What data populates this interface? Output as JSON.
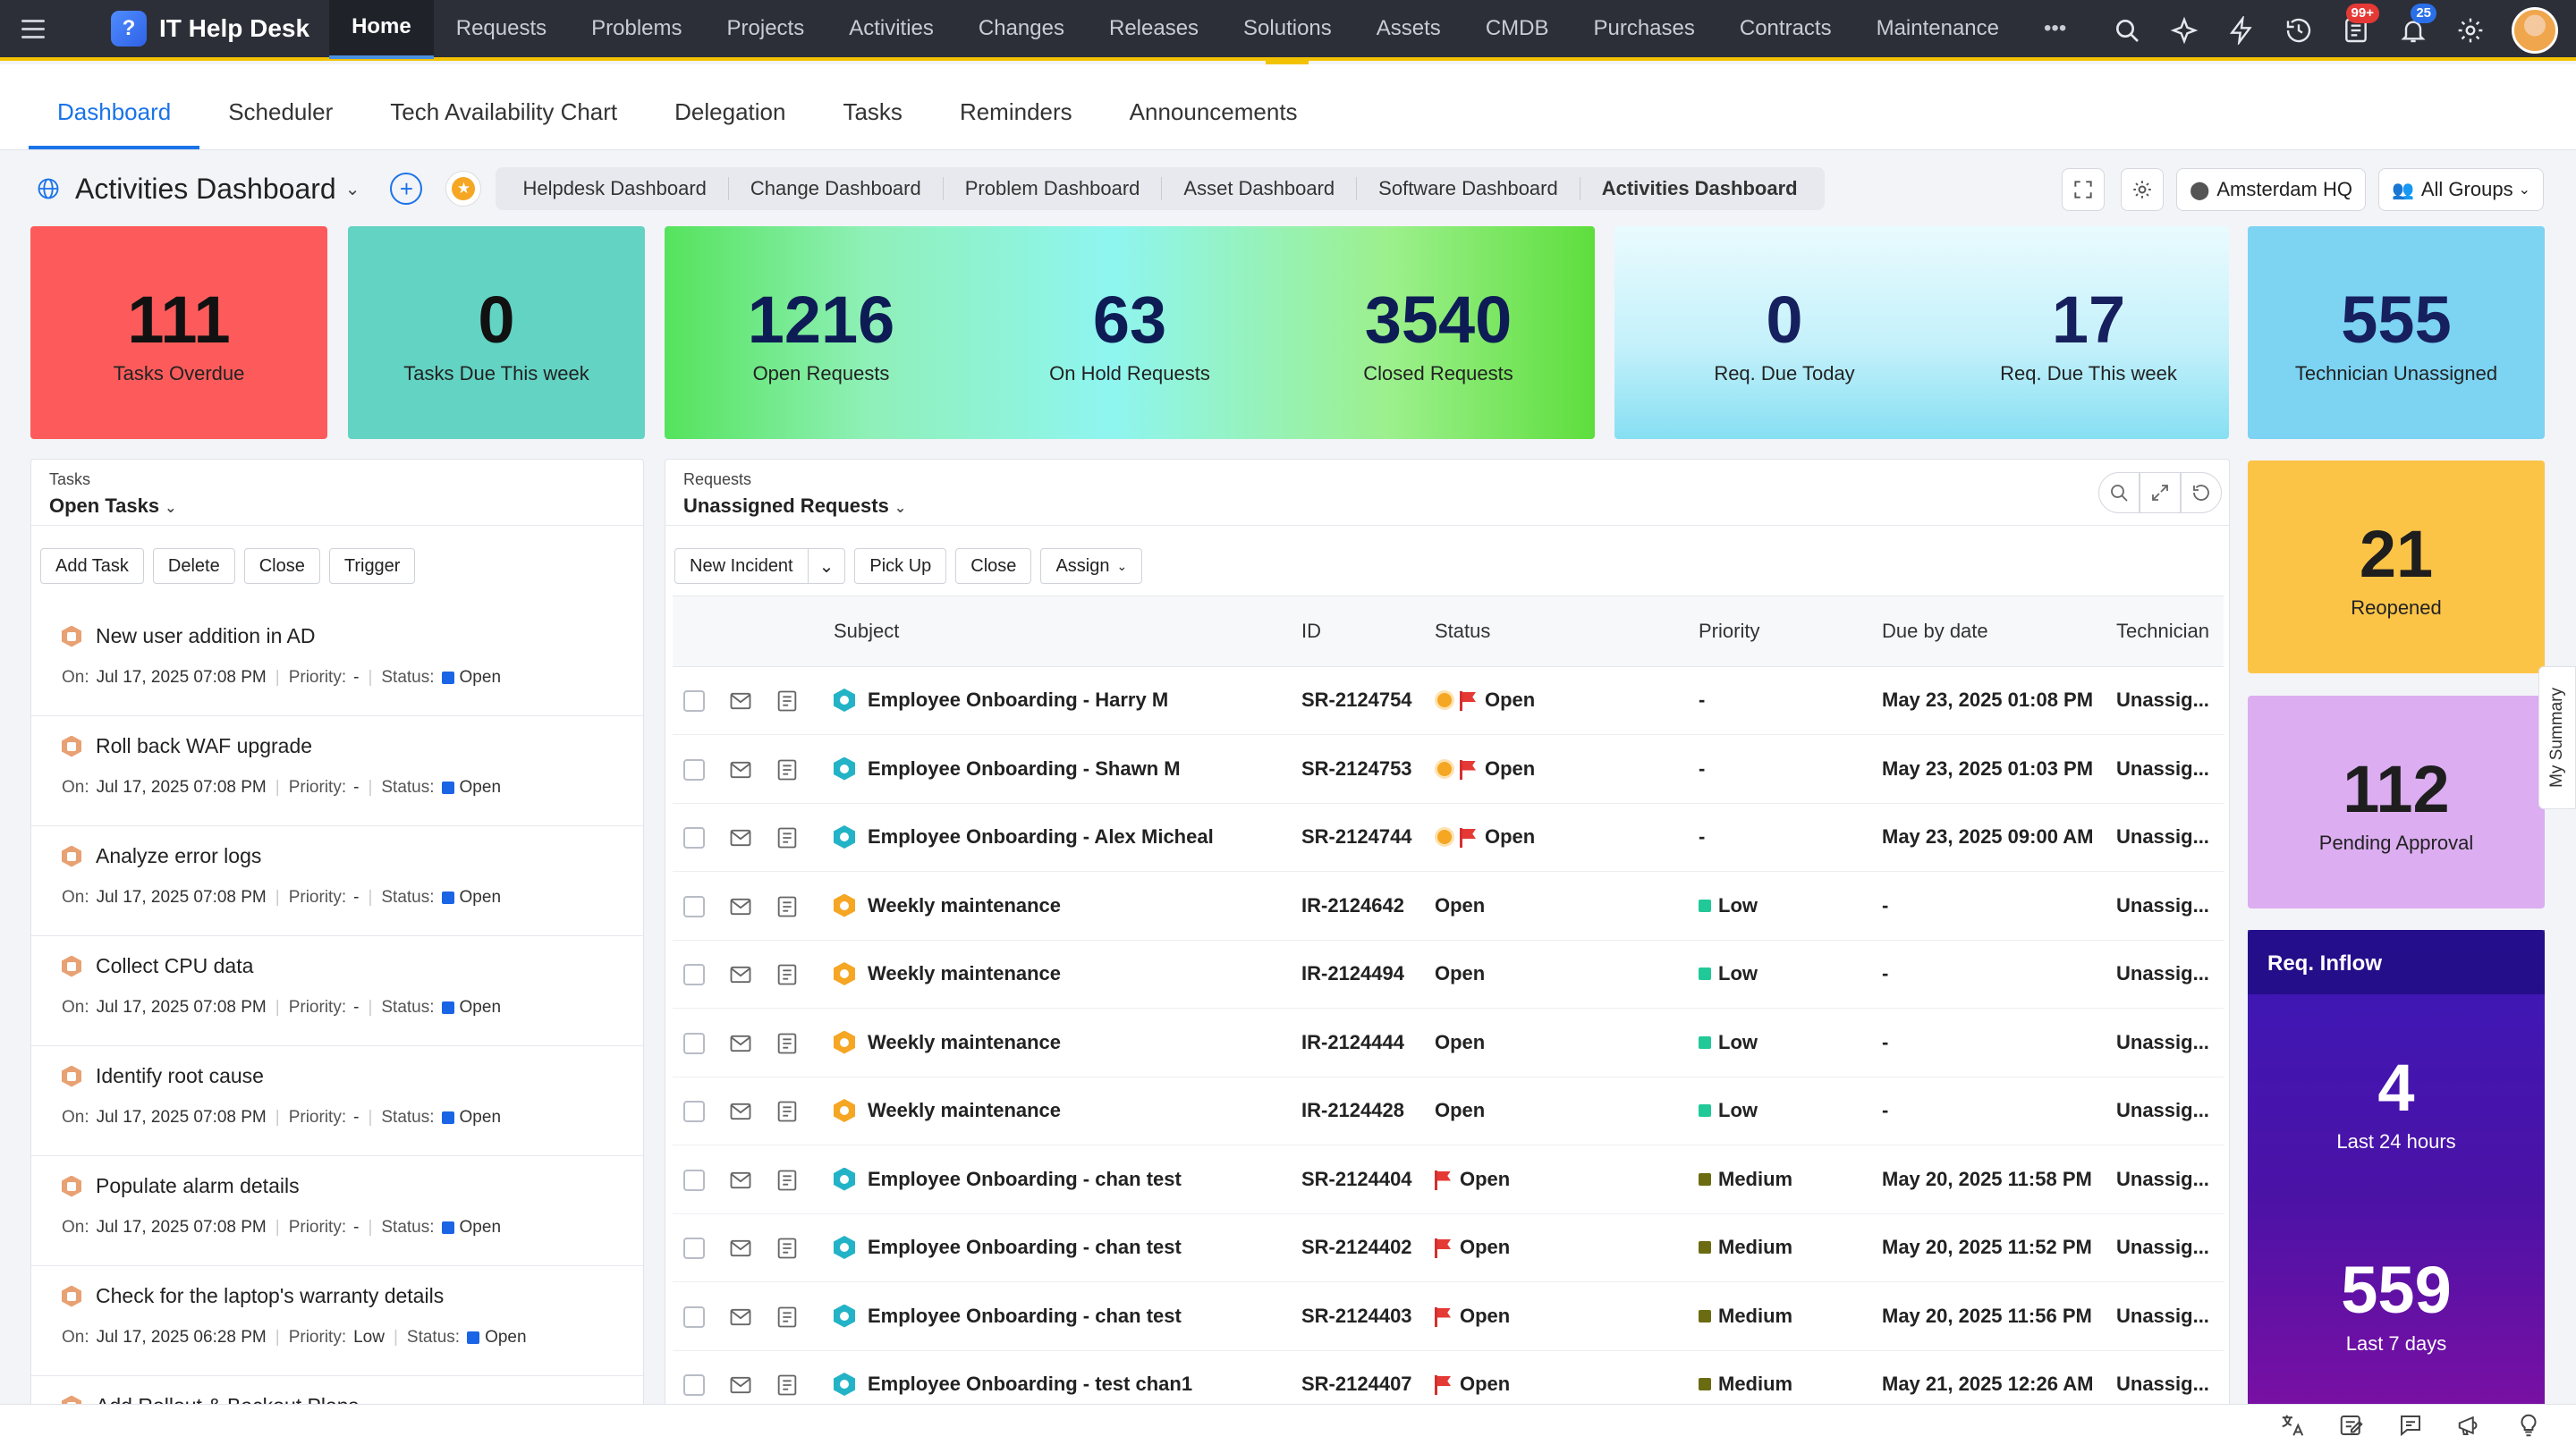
{
  "app": {
    "title": "IT Help Desk",
    "nav_tabs": [
      "Home",
      "Requests",
      "Problems",
      "Projects",
      "Activities",
      "Changes",
      "Releases",
      "Solutions",
      "Assets",
      "CMDB",
      "Purchases",
      "Contracts",
      "Maintenance"
    ],
    "more_label": "•••",
    "badges": {
      "requests": "99+",
      "notifications": "25"
    }
  },
  "subnav": [
    "Dashboard",
    "Scheduler",
    "Tech Availability Chart",
    "Delegation",
    "Tasks",
    "Reminders",
    "Announcements"
  ],
  "dashboard": {
    "title": "Activities Dashboard",
    "links": [
      "Helpdesk Dashboard",
      "Change Dashboard",
      "Problem Dashboard",
      "Asset Dashboard",
      "Software Dashboard",
      "Activities Dashboard"
    ],
    "site": "Amsterdam HQ",
    "group": "All Groups"
  },
  "metrics": {
    "tasks_overdue": {
      "value": "111",
      "label": "Tasks Overdue"
    },
    "tasks_due_week": {
      "value": "0",
      "label": "Tasks Due This week"
    },
    "open_requests": {
      "value": "1216",
      "label": "Open Requests"
    },
    "on_hold": {
      "value": "63",
      "label": "On Hold Requests"
    },
    "closed": {
      "value": "3540",
      "label": "Closed Requests"
    },
    "due_today": {
      "value": "0",
      "label": "Req. Due Today"
    },
    "due_week": {
      "value": "17",
      "label": "Req. Due This week"
    },
    "tech_unassigned": {
      "value": "555",
      "label": "Technician Unassigned"
    },
    "reopened": {
      "value": "21",
      "label": "Reopened"
    },
    "pending_approval": {
      "value": "112",
      "label": "Pending Approval"
    }
  },
  "inflow": {
    "title": "Req. Inflow",
    "last24": {
      "value": "4",
      "label": "Last 24 hours"
    },
    "last7": {
      "value": "559",
      "label": "Last 7 days"
    }
  },
  "tasks": {
    "caption": "Tasks",
    "title": "Open Tasks",
    "buttons": [
      "Add Task",
      "Delete",
      "Close",
      "Trigger"
    ],
    "labels": {
      "on": "On:",
      "priority": "Priority:",
      "status": "Status:"
    },
    "items": [
      {
        "title": "New user addition in AD",
        "on": "Jul 17, 2025 07:08 PM",
        "priority": "-",
        "status": "Open"
      },
      {
        "title": "Roll back WAF upgrade",
        "on": "Jul 17, 2025 07:08 PM",
        "priority": "-",
        "status": "Open"
      },
      {
        "title": "Analyze error logs",
        "on": "Jul 17, 2025 07:08 PM",
        "priority": "-",
        "status": "Open"
      },
      {
        "title": "Collect CPU data",
        "on": "Jul 17, 2025 07:08 PM",
        "priority": "-",
        "status": "Open"
      },
      {
        "title": "Identify root cause",
        "on": "Jul 17, 2025 07:08 PM",
        "priority": "-",
        "status": "Open"
      },
      {
        "title": "Populate alarm details",
        "on": "Jul 17, 2025 07:08 PM",
        "priority": "-",
        "status": "Open"
      },
      {
        "title": "Check for the laptop's warranty details",
        "on": "Jul 17, 2025 06:28 PM",
        "priority": "Low",
        "status": "Open"
      },
      {
        "title": "Add Rollout & Backout Plans",
        "on": "",
        "priority": "",
        "status": ""
      }
    ]
  },
  "requests": {
    "caption": "Requests",
    "title": "Unassigned Requests",
    "buttons": {
      "new_incident": "New Incident",
      "pick_up": "Pick Up",
      "close": "Close",
      "assign": "Assign"
    },
    "columns": [
      "Subject",
      "ID",
      "Status",
      "Priority",
      "Due by date",
      "Technician"
    ],
    "rows": [
      {
        "type": "sr",
        "subject": "Employee Onboarding - Harry M",
        "id": "SR-2124754",
        "clock": true,
        "flag": true,
        "status": "Open",
        "priority": "-",
        "prio_color": "",
        "due": "May 23, 2025 01:08 PM",
        "tech": "Unassig..."
      },
      {
        "type": "sr",
        "subject": "Employee Onboarding - Shawn M",
        "id": "SR-2124753",
        "clock": true,
        "flag": true,
        "status": "Open",
        "priority": "-",
        "prio_color": "",
        "due": "May 23, 2025 01:03 PM",
        "tech": "Unassig..."
      },
      {
        "type": "sr",
        "subject": "Employee Onboarding - Alex Micheal",
        "id": "SR-2124744",
        "clock": true,
        "flag": true,
        "status": "Open",
        "priority": "-",
        "prio_color": "",
        "due": "May 23, 2025 09:00 AM",
        "tech": "Unassig..."
      },
      {
        "type": "ir",
        "subject": "Weekly maintenance",
        "id": "IR-2124642",
        "clock": false,
        "flag": false,
        "status": "Open",
        "priority": "Low",
        "prio_color": "#20c997",
        "due": "-",
        "tech": "Unassig..."
      },
      {
        "type": "ir",
        "subject": "Weekly maintenance",
        "id": "IR-2124494",
        "clock": false,
        "flag": false,
        "status": "Open",
        "priority": "Low",
        "prio_color": "#20c997",
        "due": "-",
        "tech": "Unassig..."
      },
      {
        "type": "ir",
        "subject": "Weekly maintenance",
        "id": "IR-2124444",
        "clock": false,
        "flag": false,
        "status": "Open",
        "priority": "Low",
        "prio_color": "#20c997",
        "due": "-",
        "tech": "Unassig..."
      },
      {
        "type": "ir",
        "subject": "Weekly maintenance",
        "id": "IR-2124428",
        "clock": false,
        "flag": false,
        "status": "Open",
        "priority": "Low",
        "prio_color": "#20c997",
        "due": "-",
        "tech": "Unassig..."
      },
      {
        "type": "sr",
        "subject": "Employee Onboarding - chan test",
        "id": "SR-2124404",
        "clock": false,
        "flag": true,
        "status": "Open",
        "priority": "Medium",
        "prio_color": "#6b6b12",
        "due": "May 20, 2025 11:58 PM",
        "tech": "Unassig..."
      },
      {
        "type": "sr",
        "subject": "Employee Onboarding - chan test",
        "id": "SR-2124402",
        "clock": false,
        "flag": true,
        "status": "Open",
        "priority": "Medium",
        "prio_color": "#6b6b12",
        "due": "May 20, 2025 11:52 PM",
        "tech": "Unassig..."
      },
      {
        "type": "sr",
        "subject": "Employee Onboarding - chan test",
        "id": "SR-2124403",
        "clock": false,
        "flag": true,
        "status": "Open",
        "priority": "Medium",
        "prio_color": "#6b6b12",
        "due": "May 20, 2025 11:56 PM",
        "tech": "Unassig..."
      },
      {
        "type": "sr",
        "subject": "Employee Onboarding - test chan1",
        "id": "SR-2124407",
        "clock": false,
        "flag": true,
        "status": "Open",
        "priority": "Medium",
        "prio_color": "#6b6b12",
        "due": "May 21, 2025 12:26 AM",
        "tech": "Unassig..."
      }
    ]
  },
  "sidebar_tab": "My Summary",
  "colors": {
    "accent": "#1a73e8",
    "nav_bg": "#2c2f38",
    "nav_underline": "#f2c200"
  }
}
